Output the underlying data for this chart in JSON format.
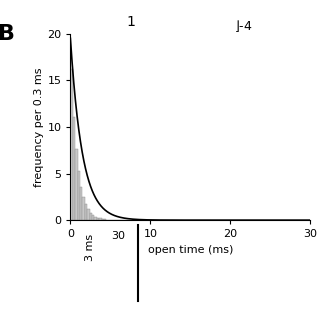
{
  "panel_label": "B",
  "xlabel": "open time (ms)",
  "ylabel": "frequency per 0.3 ms",
  "xlim": [
    0,
    30
  ],
  "ylim": [
    0,
    20
  ],
  "xticks": [
    0,
    10,
    20,
    30
  ],
  "yticks": [
    0,
    5,
    10,
    15,
    20
  ],
  "hist_amplitude": 19.5,
  "hist_tau": 0.8,
  "bin_width": 0.3,
  "num_bins": 100,
  "curve_amplitude": 19.5,
  "curve_tau": 1.5,
  "bar_color": "#c8c8c8",
  "bar_edge_color": "#888888",
  "line_color": "#000000",
  "background_color": "#ffffff",
  "top_text_1": "1",
  "top_text_2": "-4",
  "bottom_label_y": "3 ms",
  "bottom_tick_value": "30",
  "figure_width": 3.2,
  "figure_height": 3.2,
  "dpi": 100
}
